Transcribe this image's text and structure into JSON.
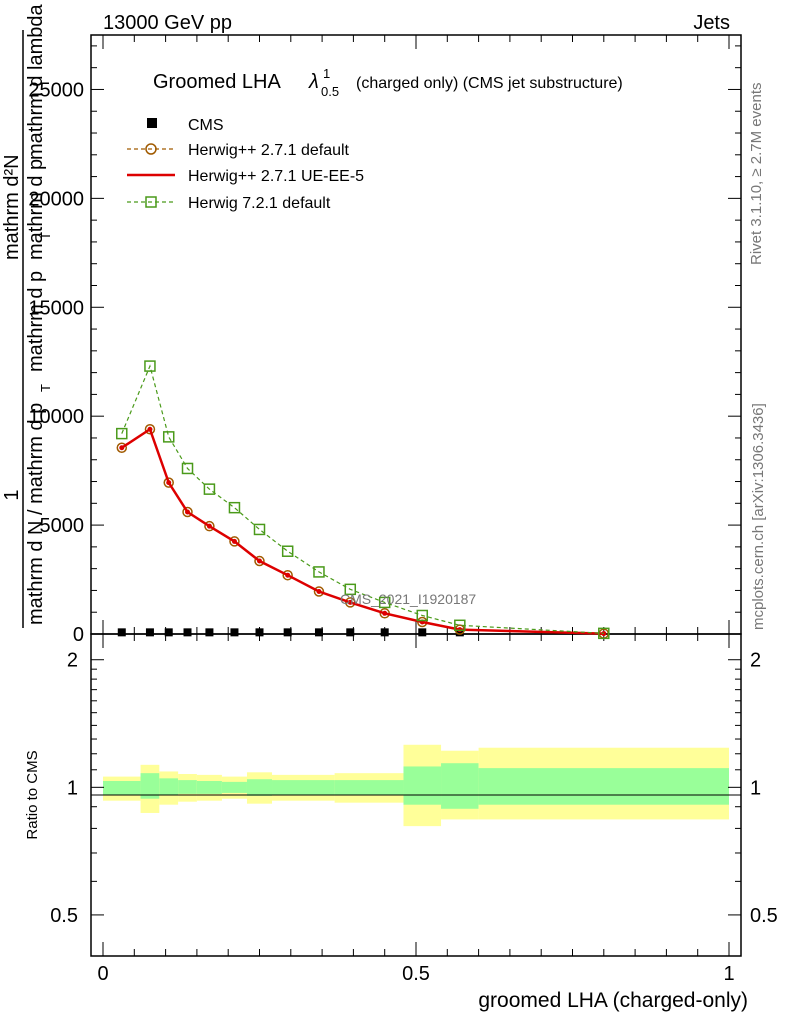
{
  "header": {
    "left": "13000 GeV pp",
    "right": "Jets"
  },
  "side": {
    "top": "Rivet 3.1.10, ≥ 2.7M events",
    "bottom": "mcplots.cern.ch [arXiv:1306.3436]"
  },
  "chart_data": {
    "type": "line",
    "title_main": "Groomed LHA",
    "title_lambda": "λ",
    "title_sup": "1",
    "title_sub": "0.5",
    "title_rest": "(charged only) (CMS jet substructure)",
    "watermark": "CMS_2021_I1920187",
    "xlabel": "groomed LHA (charged-only)",
    "ylabel_top": {
      "one": "1",
      "num": "mathrm d²N",
      "den_a": "mathrm d p",
      "den_a_sub": "T",
      "den_b": "mathrm d lambda",
      "den_b2": "mathrm d p",
      "den_b2_sub": "T",
      "den_c": "mathrm d N / mathrm d p",
      "den_c_sub": "T"
    },
    "ylabel_ratio": "Ratio to CMS",
    "xlim": [
      0,
      1
    ],
    "ylim": [
      0,
      27500
    ],
    "ratio_ylim": [
      0.4,
      2.3
    ],
    "x_ticks": [
      "0",
      "0.5",
      "1"
    ],
    "y_ticks": [
      "0",
      "5000",
      "10000",
      "15000",
      "20000",
      "25000"
    ],
    "ratio_ticks_left": [
      "0.5",
      "1",
      "2"
    ],
    "ratio_ticks_right": [
      "0.5",
      "1",
      "2"
    ],
    "series": [
      {
        "name": "CMS",
        "style": "data",
        "color": "#000000",
        "x": [
          0.03,
          0.075,
          0.105,
          0.135,
          0.17,
          0.21,
          0.25,
          0.295,
          0.345,
          0.395,
          0.45,
          0.51,
          0.57
        ],
        "values": [
          30,
          30,
          30,
          30,
          30,
          30,
          30,
          30,
          30,
          30,
          30,
          30,
          30
        ]
      },
      {
        "name": "Herwig++ 2.7.1 default",
        "style": "circle-dashed",
        "color": "#a05a00",
        "x": [
          0.03,
          0.075,
          0.105,
          0.135,
          0.17,
          0.21,
          0.25,
          0.295,
          0.345,
          0.395,
          0.45,
          0.51,
          0.57,
          0.8
        ],
        "values": [
          8550,
          9400,
          6950,
          5600,
          4950,
          4250,
          3350,
          2700,
          1950,
          1450,
          950,
          550,
          200,
          20
        ]
      },
      {
        "name": "Herwig++ 2.7.1 UE-EE-5",
        "style": "solid",
        "color": "#dd0000",
        "x": [
          0.03,
          0.075,
          0.105,
          0.135,
          0.17,
          0.21,
          0.25,
          0.295,
          0.345,
          0.395,
          0.45,
          0.51,
          0.57,
          0.8
        ],
        "values": [
          8550,
          9400,
          6950,
          5600,
          4950,
          4250,
          3350,
          2700,
          1950,
          1450,
          950,
          550,
          200,
          20
        ]
      },
      {
        "name": "Herwig 7.2.1 default",
        "style": "square-dashed",
        "color": "#4a9a1a",
        "x": [
          0.03,
          0.075,
          0.105,
          0.135,
          0.17,
          0.21,
          0.25,
          0.295,
          0.345,
          0.395,
          0.45,
          0.51,
          0.57,
          0.8
        ],
        "values": [
          9200,
          12300,
          9050,
          7600,
          6650,
          5800,
          4800,
          3800,
          2850,
          2050,
          1450,
          850,
          400,
          30
        ]
      }
    ],
    "ratio_bands": [
      {
        "x0": 0.0,
        "x1": 0.06,
        "g": [
          0.96,
          1.035
        ],
        "y": [
          0.93,
          1.06
        ]
      },
      {
        "x0": 0.06,
        "x1": 0.09,
        "g": [
          0.94,
          1.08
        ],
        "y": [
          0.87,
          1.13
        ]
      },
      {
        "x0": 0.09,
        "x1": 0.12,
        "g": [
          0.96,
          1.05
        ],
        "y": [
          0.91,
          1.09
        ]
      },
      {
        "x0": 0.12,
        "x1": 0.15,
        "g": [
          0.965,
          1.04
        ],
        "y": [
          0.925,
          1.075
        ]
      },
      {
        "x0": 0.15,
        "x1": 0.19,
        "g": [
          0.965,
          1.035
        ],
        "y": [
          0.93,
          1.07
        ]
      },
      {
        "x0": 0.19,
        "x1": 0.23,
        "g": [
          0.97,
          1.03
        ],
        "y": [
          0.94,
          1.06
        ]
      },
      {
        "x0": 0.23,
        "x1": 0.27,
        "g": [
          0.955,
          1.045
        ],
        "y": [
          0.915,
          1.085
        ]
      },
      {
        "x0": 0.27,
        "x1": 0.37,
        "g": [
          0.96,
          1.04
        ],
        "y": [
          0.93,
          1.07
        ]
      },
      {
        "x0": 0.37,
        "x1": 0.48,
        "g": [
          0.96,
          1.04
        ],
        "y": [
          0.92,
          1.08
        ]
      },
      {
        "x0": 0.48,
        "x1": 0.54,
        "g": [
          0.91,
          1.12
        ],
        "y": [
          0.81,
          1.26
        ]
      },
      {
        "x0": 0.54,
        "x1": 0.6,
        "g": [
          0.89,
          1.14
        ],
        "y": [
          0.84,
          1.22
        ]
      },
      {
        "x0": 0.6,
        "x1": 1.0,
        "g": [
          0.91,
          1.11
        ],
        "y": [
          0.84,
          1.24
        ]
      }
    ]
  }
}
